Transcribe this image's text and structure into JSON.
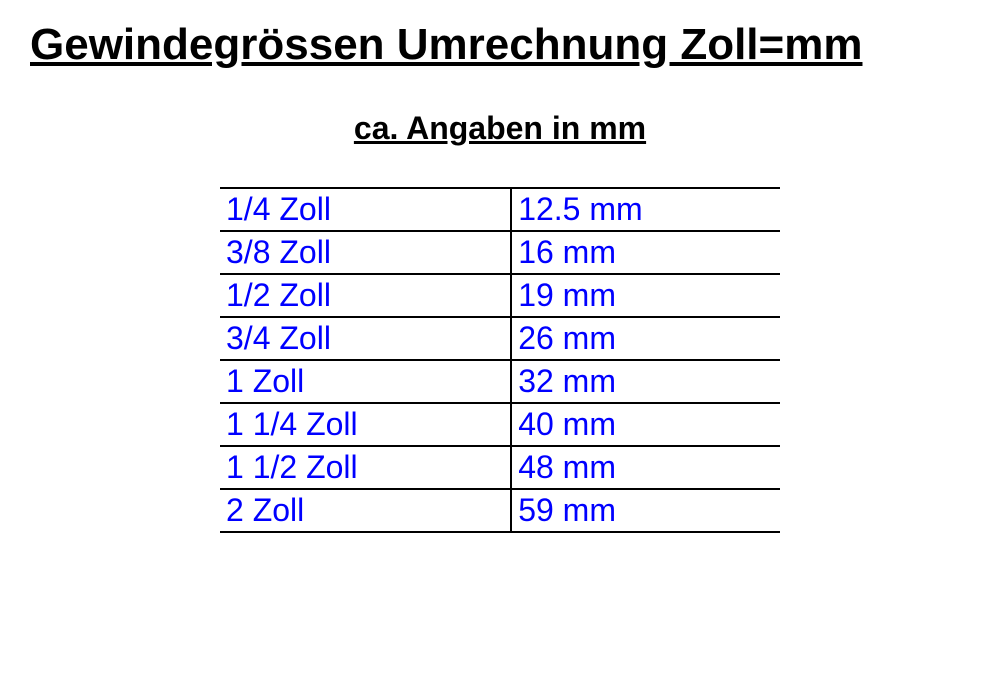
{
  "title": "Gewindegrössen Umrechnung Zoll=mm",
  "subtitle": "ca. Angaben in mm",
  "table": {
    "columns": [
      "zoll",
      "mm"
    ],
    "rows": [
      {
        "zoll": "1/4 Zoll",
        "mm": "12.5 mm"
      },
      {
        "zoll": "3/8 Zoll",
        "mm": "16 mm"
      },
      {
        "zoll": "1/2 Zoll",
        "mm": "19 mm"
      },
      {
        "zoll": "3/4 Zoll",
        "mm": "26 mm"
      },
      {
        "zoll": "1 Zoll",
        "mm": "32 mm"
      },
      {
        "zoll": "1 1/4 Zoll",
        "mm": "40 mm"
      },
      {
        "zoll": "1 1/2 Zoll",
        "mm": "48 mm"
      },
      {
        "zoll": "2 Zoll",
        "mm": "59 mm"
      }
    ],
    "text_color": "#0000ff",
    "border_color": "#000000",
    "font_size_pt": 24,
    "cell_border_width": 2
  },
  "title_color": "#000000",
  "subtitle_color": "#000000",
  "background_color": "#ffffff"
}
